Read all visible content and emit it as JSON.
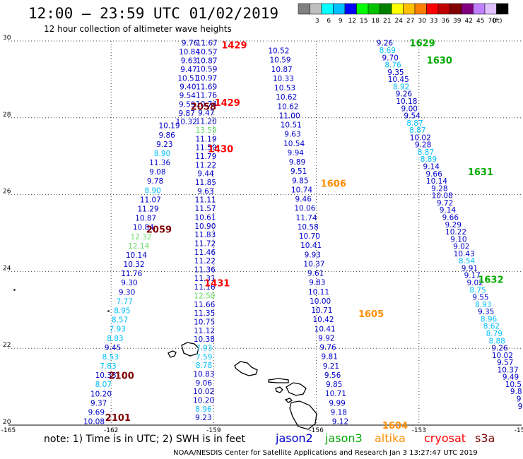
{
  "header": {
    "title": "12:00 – 23:59 UTC 01/02/2019",
    "subtitle": "12 hour collection of altimeter wave heights"
  },
  "scale": {
    "unit": "(ft)",
    "bins": [
      {
        "label": "",
        "color": "#808080"
      },
      {
        "label": "3",
        "color": "#bfbfbf"
      },
      {
        "label": "6",
        "color": "#00ffff"
      },
      {
        "label": "9",
        "color": "#00bfff"
      },
      {
        "label": "12",
        "color": "#0000ff"
      },
      {
        "label": "15",
        "color": "#00ff00"
      },
      {
        "label": "18",
        "color": "#00c000"
      },
      {
        "label": "21",
        "color": "#008000"
      },
      {
        "label": "24",
        "color": "#ffff00"
      },
      {
        "label": "27",
        "color": "#ffc000"
      },
      {
        "label": "30",
        "color": "#ff8000"
      },
      {
        "label": "33",
        "color": "#ff0000"
      },
      {
        "label": "36",
        "color": "#c00000"
      },
      {
        "label": "39",
        "color": "#800000"
      },
      {
        "label": "42",
        "color": "#800080"
      },
      {
        "label": "45",
        "color": "#c080ff"
      },
      {
        "label": "70",
        "color": "#e0c0ff"
      },
      {
        "label": "",
        "color": "#000000"
      }
    ]
  },
  "axes": {
    "x_ticks": [
      "-165",
      "-162",
      "-159",
      "-156",
      "-153",
      "-150"
    ],
    "y_ticks": [
      "30",
      "28",
      "26",
      "24",
      "22",
      "20"
    ],
    "lon_range": [
      -165,
      -150
    ],
    "lat_range": [
      20,
      30
    ]
  },
  "colors": {
    "jason2": "#0000cc",
    "jason3": "#00aa00",
    "altika": "#ff8c00",
    "cryosat": "#ff0000",
    "s3a": "#800000",
    "light_blue": "#00bfff",
    "light_green": "#66dd66"
  },
  "satellites": [
    {
      "name": "jason2",
      "color": "#0000cc"
    },
    {
      "name": "jason3",
      "color": "#00aa00"
    },
    {
      "name": "altika",
      "color": "#ff8c00"
    },
    {
      "name": "cryosat",
      "color": "#ff0000"
    },
    {
      "name": "s3a",
      "color": "#800000"
    }
  ],
  "footer": {
    "note": "note: 1) Time is in UTC; 2) SWH is in feet",
    "credit": "NOAA/NESDIS Center for Satellite Applications and Research   Jan  3 13:27:47 UTC 2019"
  },
  "time_labels": [
    {
      "text": "1429",
      "lon": -158.4,
      "lat": 29.9,
      "color": "#ff0000"
    },
    {
      "text": "1429",
      "lon": -158.6,
      "lat": 28.4,
      "color": "#ff0000"
    },
    {
      "text": "2058",
      "lon": -159.3,
      "lat": 28.3,
      "color": "#800000"
    },
    {
      "text": "1430",
      "lon": -158.8,
      "lat": 27.2,
      "color": "#ff0000"
    },
    {
      "text": "2059",
      "lon": -160.6,
      "lat": 25.1,
      "color": "#800000"
    },
    {
      "text": "1431",
      "lon": -158.9,
      "lat": 23.7,
      "color": "#ff0000"
    },
    {
      "text": "2100",
      "lon": -161.7,
      "lat": 21.3,
      "color": "#800000"
    },
    {
      "text": "2101",
      "lon": -161.8,
      "lat": 20.2,
      "color": "#800000"
    },
    {
      "text": "1629",
      "lon": -152.9,
      "lat": 29.95,
      "color": "#00aa00"
    },
    {
      "text": "1630",
      "lon": -152.4,
      "lat": 29.5,
      "color": "#00aa00"
    },
    {
      "text": "1631",
      "lon": -151.2,
      "lat": 26.6,
      "color": "#00aa00"
    },
    {
      "text": "1632",
      "lon": -150.9,
      "lat": 23.8,
      "color": "#00aa00"
    },
    {
      "text": "1606",
      "lon": -155.5,
      "lat": 26.3,
      "color": "#ff8c00"
    },
    {
      "text": "1605",
      "lon": -154.4,
      "lat": 22.9,
      "color": "#ff8c00"
    },
    {
      "text": "1604",
      "lon": -153.7,
      "lat": 20.0,
      "color": "#ff8c00"
    }
  ],
  "tracks": [
    {
      "name": "track-a",
      "lon_start": -159.7,
      "lat_start": 29.95,
      "lon_end": -159.8,
      "lat_end": 27.9,
      "color": "#0000cc",
      "values": [
        "9.76",
        "10.84",
        "9.63",
        "9.47",
        "10.51",
        "9.40",
        "9.54",
        "9.59",
        "9.87",
        "10.32"
      ]
    },
    {
      "name": "track-b",
      "lon_start": -159.2,
      "lat_start": 29.95,
      "lon_end": -159.3,
      "lat_end": 20.2,
      "color": "#0000cc",
      "values": [
        "11.67",
        "10.57",
        "10.87",
        "10.59",
        "10.97",
        "11.69",
        "11.76",
        "10.74",
        "9.47",
        "11.20",
        "13.59",
        "11.19",
        "11.59",
        "11.79",
        "11.22",
        "9.44",
        "11.85",
        "9.63",
        "11.11",
        "11.57",
        "10.61",
        "10.90",
        "11.83",
        "11.72",
        "11.46",
        "11.22",
        "11.36",
        "11.31",
        "11.16",
        "12.50",
        "11.66",
        "11.35",
        "10.75",
        "11.12",
        "10.38",
        "7.93",
        "7.59",
        "8.78",
        "10.83",
        "9.06",
        "10.02",
        "10.20",
        "8.96",
        "9.23"
      ]
    },
    {
      "name": "track-c",
      "lon_start": -160.3,
      "lat_start": 27.8,
      "lon_end": -162.5,
      "lat_end": 20.1,
      "color": "#0000cc",
      "values": [
        "10.19",
        "9.86",
        "9.23",
        "8.90",
        "11.36",
        "9.08",
        "9.78",
        "8.90",
        "11.07",
        "11.29",
        "10.87",
        "10.84",
        "12.32",
        "12.14",
        "10.14",
        "10.32",
        "11.76",
        "9.30",
        "9.30",
        "7.77",
        "8.95",
        "8.57",
        "7.93",
        "8.83",
        "9.45",
        "8.53",
        "7.83",
        "10.33",
        "8.07",
        "10.20",
        "9.37",
        "9.69",
        "10.08"
      ]
    },
    {
      "name": "track-d",
      "lon_start": -157.1,
      "lat_start": 29.75,
      "lon_end": -155.3,
      "lat_end": 20.1,
      "color": "#0000cc",
      "values": [
        "10.52",
        "10.59",
        "10.87",
        "10.33",
        "10.53",
        "10.62",
        "10.62",
        "11.00",
        "10.51",
        "9.63",
        "10.54",
        "9.94",
        "9.89",
        "9.51",
        "9.85",
        "10.74",
        "9.46",
        "10.06",
        "11.74",
        "10.58",
        "10.70",
        "10.41",
        "9.93",
        "10.37",
        "9.61",
        "9.83",
        "10.11",
        "10.00",
        "10.71",
        "10.42",
        "10.41",
        "9.92",
        "9.76",
        "9.81",
        "9.21",
        "9.56",
        "9.85",
        "10.71",
        "9.99",
        "9.18",
        "9.12"
      ]
    },
    {
      "name": "track-e",
      "lon_start": -154.0,
      "lat_start": 29.95,
      "lon_end": -150.0,
      "lat_end": 20.5,
      "color": "#0000cc",
      "values": [
        "9.26",
        "8.69",
        "9.70",
        "8.76",
        "9.35",
        "10.45",
        "8.92",
        "9.26",
        "10.18",
        "9.00",
        "9.54",
        "8.87",
        "8.87",
        "10.02",
        "9.28",
        "8.87",
        "8.89",
        "9.14",
        "9.66",
        "10.14",
        "9.28",
        "10.08",
        "9.72",
        "9.14",
        "9.66",
        "9.29",
        "10.22",
        "9.10",
        "9.02",
        "10.43",
        "8.54",
        "9.91",
        "9.17",
        "9.02",
        "8.75",
        "9.55",
        "8.93",
        "9.35",
        "8.96",
        "8.62",
        "8.79",
        "8.88",
        "9.26",
        "10.02",
        "9.57",
        "10.37",
        "9.49",
        "10.5",
        "9.8",
        "9",
        "9"
      ]
    }
  ]
}
